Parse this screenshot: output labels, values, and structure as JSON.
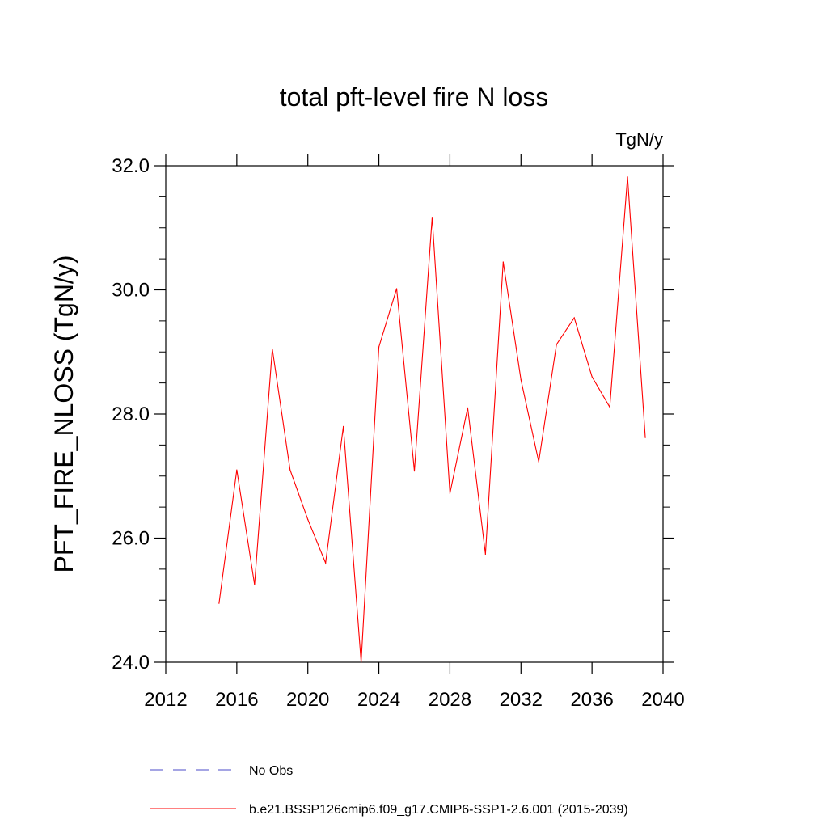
{
  "chart_data": {
    "type": "line",
    "title": "total pft-level fire N loss",
    "units_label": "TgN/y",
    "ylabel": "PFT_FIRE_NLOSS  (TgN/y)",
    "xlabel": "",
    "xlim": [
      2012,
      2040
    ],
    "ylim": [
      24.0,
      32.0
    ],
    "x_ticks": [
      2012,
      2016,
      2020,
      2024,
      2028,
      2032,
      2036,
      2040
    ],
    "x_tick_labels": [
      "2012",
      "2016",
      "2020",
      "2024",
      "2028",
      "2032",
      "2036",
      "2040"
    ],
    "y_ticks": [
      24.0,
      26.0,
      28.0,
      30.0,
      32.0
    ],
    "y_tick_labels": [
      "24.0",
      "26.0",
      "28.0",
      "30.0",
      "32.0"
    ],
    "grid": false,
    "legend_position": "bottom",
    "series": [
      {
        "name": "b.e21.BSSP126cmip6.f09_g17.CMIP6-SSP1-2.6.001 (2015-2039)",
        "color": "#ff0000",
        "style": "solid",
        "x": [
          2015,
          2016,
          2017,
          2018,
          2019,
          2020,
          2021,
          2022,
          2023,
          2024,
          2025,
          2026,
          2027,
          2028,
          2029,
          2030,
          2031,
          2032,
          2033,
          2034,
          2035,
          2036,
          2037,
          2038,
          2039
        ],
        "y": [
          24.95,
          27.1,
          25.25,
          29.05,
          27.1,
          26.3,
          25.6,
          27.8,
          24.0,
          29.08,
          30.02,
          27.08,
          31.17,
          26.72,
          28.1,
          25.74,
          30.45,
          28.55,
          27.23,
          29.12,
          29.55,
          28.6,
          28.11,
          31.82,
          27.62
        ]
      }
    ],
    "legend": [
      {
        "label": "No Obs",
        "color": "#4b4bc8",
        "style": "dashed"
      },
      {
        "label": "b.e21.BSSP126cmip6.f09_g17.CMIP6-SSP1-2.6.001 (2015-2039)",
        "color": "#ff0000",
        "style": "solid"
      }
    ]
  }
}
